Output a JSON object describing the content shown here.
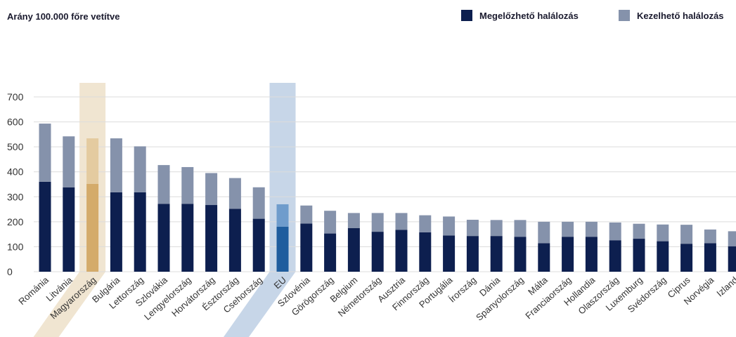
{
  "chart_data": {
    "type": "bar",
    "stacked": true,
    "title": "Arány 100.000 főre vetítve",
    "xlabel": "",
    "ylabel": "",
    "ylim": [
      0,
      700
    ],
    "yticks": [
      0,
      100,
      200,
      300,
      400,
      500,
      600,
      700
    ],
    "grid": true,
    "legend_position": "top-right",
    "categories": [
      "Románia",
      "Litvánia",
      "Magyarország",
      "Bulgária",
      "Lettország",
      "Szlovákia",
      "Lengyelország",
      "Horvátország",
      "Észtország",
      "Csehország",
      "EU",
      "Szlovénia",
      "Görögország",
      "Belgium",
      "Németország",
      "Ausztria",
      "Finnország",
      "Portugália",
      "Írország",
      "Dánia",
      "Spanyolország",
      "Málta",
      "Franciaország",
      "Hollandia",
      "Olaszország",
      "Luxemburg",
      "Svédország",
      "Ciprus",
      "Norvégia",
      "Izland"
    ],
    "series": [
      {
        "name": "Megelőzhető halálozás",
        "color": "#0d1f4f",
        "values": [
          360,
          338,
          352,
          318,
          318,
          272,
          272,
          267,
          252,
          212,
          180,
          193,
          153,
          175,
          160,
          168,
          158,
          145,
          143,
          143,
          140,
          114,
          140,
          140,
          126,
          132,
          122,
          112,
          114,
          102
        ]
      },
      {
        "name": "Kezelhető halálozás",
        "color": "#8592ab",
        "values": [
          233,
          204,
          182,
          216,
          184,
          155,
          147,
          128,
          123,
          126,
          90,
          72,
          91,
          60,
          75,
          67,
          68,
          76,
          65,
          64,
          67,
          86,
          60,
          60,
          71,
          60,
          67,
          76,
          55,
          60
        ]
      }
    ],
    "highlights": [
      {
        "category": "Magyarország",
        "band_color": "#f0e5d1",
        "colors": [
          "#d4ab6a",
          "#e4cba0"
        ]
      },
      {
        "category": "EU",
        "band_color": "#c7d6e8",
        "colors": [
          "#1f5d9e",
          "#6f9ccc"
        ]
      }
    ]
  }
}
